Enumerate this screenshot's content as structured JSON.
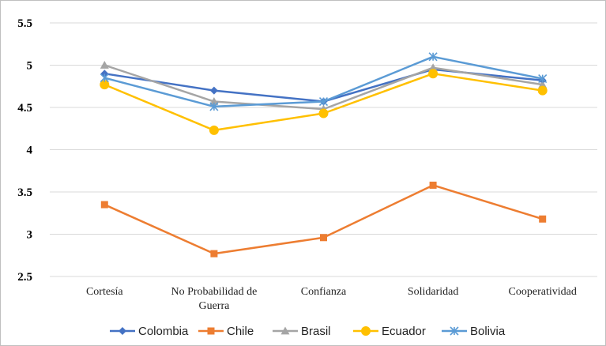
{
  "chart_data": {
    "type": "line",
    "categories": [
      [
        "Cortesía"
      ],
      [
        "No Probabilidad de",
        "Guerra"
      ],
      [
        "Confianza"
      ],
      [
        "Solidaridad"
      ],
      [
        "Cooperatividad"
      ]
    ],
    "ylim": [
      2.5,
      5.5
    ],
    "yticks": [
      "2.5",
      "3",
      "3.5",
      "4",
      "4.5",
      "5",
      "5.5"
    ],
    "grid": true,
    "legend_position": "bottom",
    "series": [
      {
        "name": "Colombia",
        "color": "#4472C4",
        "marker": "diamond",
        "values": [
          4.9,
          4.7,
          4.57,
          4.95,
          4.82
        ]
      },
      {
        "name": "Chile",
        "color": "#ED7D31",
        "marker": "square",
        "values": [
          3.35,
          2.77,
          2.96,
          3.58,
          3.18
        ]
      },
      {
        "name": "Brasil",
        "color": "#A5A5A5",
        "marker": "triangle",
        "values": [
          5.0,
          4.57,
          4.48,
          4.97,
          4.77
        ]
      },
      {
        "name": "Ecuador",
        "color": "#FFC000",
        "marker": "circle",
        "values": [
          4.77,
          4.23,
          4.43,
          4.9,
          4.7
        ]
      },
      {
        "name": "Bolivia",
        "color": "#5B9BD5",
        "marker": "star",
        "values": [
          4.85,
          4.51,
          4.57,
          5.1,
          4.84
        ]
      }
    ]
  }
}
